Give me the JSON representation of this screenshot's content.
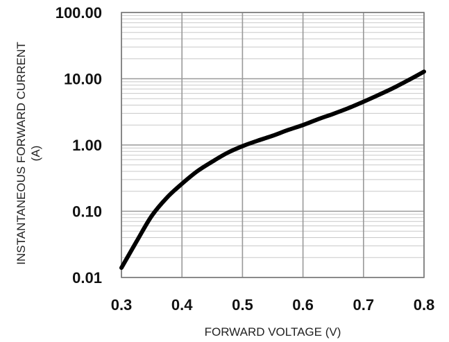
{
  "chart_data": {
    "type": "line",
    "title": "",
    "xlabel": "FORWARD VOLTAGE (V)",
    "ylabel_line1": "INSTANTANEOUS FORWARD CURRENT",
    "ylabel_line2": "(A)",
    "xlim": [
      0.3,
      0.8
    ],
    "ylim": [
      0.01,
      100
    ],
    "y_scale": "log",
    "grid": true,
    "legend": "none",
    "x_ticks": [
      "0.3",
      "0.4",
      "0.5",
      "0.6",
      "0.7",
      "0.8"
    ],
    "y_ticks": [
      "100.00",
      "10.00",
      "1.00",
      "0.10",
      "0.01"
    ],
    "series": [
      {
        "x": [
          0.3,
          0.325,
          0.35,
          0.375,
          0.4,
          0.425,
          0.45,
          0.475,
          0.5,
          0.525,
          0.55,
          0.575,
          0.6,
          0.625,
          0.65,
          0.675,
          0.7,
          0.725,
          0.75,
          0.775,
          0.8
        ],
        "y": [
          0.014,
          0.035,
          0.085,
          0.16,
          0.26,
          0.4,
          0.56,
          0.76,
          0.96,
          1.16,
          1.38,
          1.68,
          2.0,
          2.45,
          2.95,
          3.6,
          4.5,
          5.7,
          7.3,
          9.6,
          12.8
        ]
      }
    ],
    "colors": {
      "line": "#000000",
      "major_grid": "#999999",
      "minor_grid": "#c8c8c8",
      "frame": "#7a7a7a"
    }
  }
}
